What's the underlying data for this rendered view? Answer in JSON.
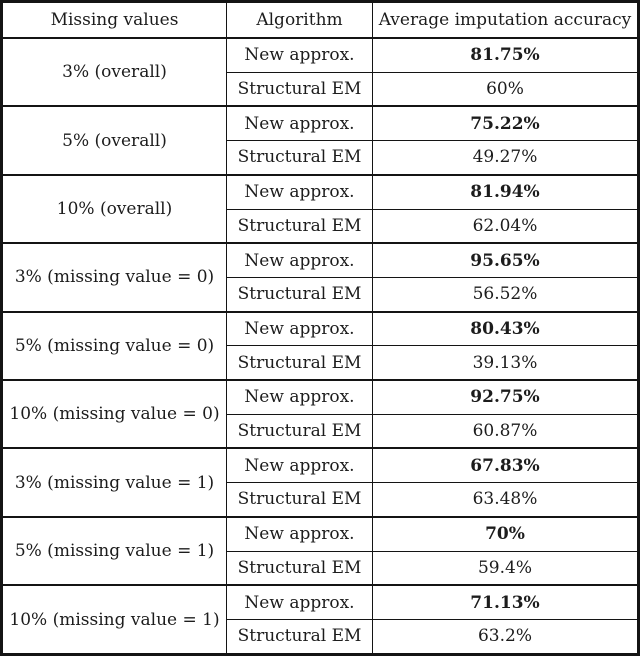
{
  "page": {
    "background_color": "#ffffff",
    "text_color": "#1c1c1c",
    "border_color": "#141414"
  },
  "table": {
    "headers": [
      "Missing values",
      "Algorithm",
      "Average imputation accuracy"
    ],
    "groups": [
      {
        "missing_values": "3% (overall)",
        "rows": [
          {
            "algorithm": "New approx.",
            "accuracy": "81.75%",
            "emphasis": true
          },
          {
            "algorithm": "Structural EM",
            "accuracy": "60%",
            "emphasis": false
          }
        ]
      },
      {
        "missing_values": "5% (overall)",
        "rows": [
          {
            "algorithm": "New approx.",
            "accuracy": "75.22%",
            "emphasis": true
          },
          {
            "algorithm": "Structural EM",
            "accuracy": "49.27%",
            "emphasis": false
          }
        ]
      },
      {
        "missing_values": "10% (overall)",
        "rows": [
          {
            "algorithm": "New approx.",
            "accuracy": "81.94%",
            "emphasis": true
          },
          {
            "algorithm": "Structural EM",
            "accuracy": "62.04%",
            "emphasis": false
          }
        ]
      },
      {
        "missing_values": "3% (missing value = 0)",
        "rows": [
          {
            "algorithm": "New approx.",
            "accuracy": "95.65%",
            "emphasis": true
          },
          {
            "algorithm": "Structural EM",
            "accuracy": "56.52%",
            "emphasis": false
          }
        ]
      },
      {
        "missing_values": "5% (missing value = 0)",
        "rows": [
          {
            "algorithm": "New approx.",
            "accuracy": "80.43%",
            "emphasis": true
          },
          {
            "algorithm": "Structural EM",
            "accuracy": "39.13%",
            "emphasis": false
          }
        ]
      },
      {
        "missing_values": "10% (missing value = 0)",
        "rows": [
          {
            "algorithm": "New approx.",
            "accuracy": "92.75%",
            "emphasis": true
          },
          {
            "algorithm": "Structural EM",
            "accuracy": "60.87%",
            "emphasis": false
          }
        ]
      },
      {
        "missing_values": "3% (missing value = 1)",
        "rows": [
          {
            "algorithm": "New approx.",
            "accuracy": "67.83%",
            "emphasis": true
          },
          {
            "algorithm": "Structural EM",
            "accuracy": "63.48%",
            "emphasis": false
          }
        ]
      },
      {
        "missing_values": "5% (missing value = 1)",
        "rows": [
          {
            "algorithm": "New approx.",
            "accuracy": "70%",
            "emphasis": true
          },
          {
            "algorithm": "Structural EM",
            "accuracy": "59.4%",
            "emphasis": false
          }
        ]
      },
      {
        "missing_values": "10% (missing value = 1)",
        "rows": [
          {
            "algorithm": "New approx.",
            "accuracy": "71.13%",
            "emphasis": true
          },
          {
            "algorithm": "Structural EM",
            "accuracy": "63.2%",
            "emphasis": false
          }
        ]
      }
    ]
  }
}
